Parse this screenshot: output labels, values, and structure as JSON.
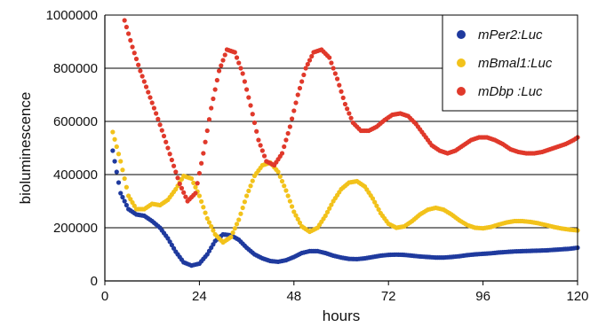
{
  "chart_data": {
    "type": "scatter",
    "xlabel": "hours",
    "ylabel": "bioluminescence",
    "xlim": [
      0,
      120
    ],
    "ylim": [
      0,
      1000000
    ],
    "x_ticks": [
      0,
      24,
      48,
      72,
      96,
      120
    ],
    "y_ticks": [
      0,
      200000,
      400000,
      600000,
      800000,
      1000000
    ],
    "x_tick_labels": [
      "0",
      "24",
      "48",
      "72",
      "96",
      "120"
    ],
    "y_tick_labels": [
      "0",
      "200000",
      "400000",
      "600000",
      "800000",
      "1000000"
    ],
    "grid": "horizontal",
    "legend_position": "top-right",
    "series": [
      {
        "name": "mPer2:Luc",
        "color": "#1f3a9e",
        "points": [
          [
            2,
            490000
          ],
          [
            4,
            330000
          ],
          [
            6,
            270000
          ],
          [
            8,
            250000
          ],
          [
            10,
            245000
          ],
          [
            12,
            225000
          ],
          [
            14,
            200000
          ],
          [
            16,
            160000
          ],
          [
            18,
            110000
          ],
          [
            20,
            70000
          ],
          [
            22,
            58000
          ],
          [
            24,
            65000
          ],
          [
            26,
            100000
          ],
          [
            28,
            150000
          ],
          [
            30,
            175000
          ],
          [
            32,
            172000
          ],
          [
            34,
            155000
          ],
          [
            36,
            125000
          ],
          [
            38,
            100000
          ],
          [
            40,
            85000
          ],
          [
            42,
            75000
          ],
          [
            44,
            72000
          ],
          [
            46,
            78000
          ],
          [
            48,
            90000
          ],
          [
            50,
            105000
          ],
          [
            52,
            112000
          ],
          [
            54,
            112000
          ],
          [
            56,
            105000
          ],
          [
            58,
            95000
          ],
          [
            60,
            88000
          ],
          [
            62,
            83000
          ],
          [
            64,
            82000
          ],
          [
            66,
            85000
          ],
          [
            68,
            90000
          ],
          [
            70,
            95000
          ],
          [
            72,
            98000
          ],
          [
            74,
            99000
          ],
          [
            76,
            98000
          ],
          [
            78,
            95000
          ],
          [
            80,
            92000
          ],
          [
            82,
            90000
          ],
          [
            84,
            88000
          ],
          [
            86,
            88000
          ],
          [
            88,
            90000
          ],
          [
            90,
            93000
          ],
          [
            92,
            97000
          ],
          [
            94,
            100000
          ],
          [
            96,
            102000
          ],
          [
            98,
            104000
          ],
          [
            100,
            107000
          ],
          [
            102,
            109000
          ],
          [
            104,
            111000
          ],
          [
            106,
            112000
          ],
          [
            108,
            113000
          ],
          [
            110,
            114000
          ],
          [
            112,
            115000
          ],
          [
            114,
            117000
          ],
          [
            116,
            119000
          ],
          [
            118,
            121000
          ],
          [
            120,
            125000
          ]
        ]
      },
      {
        "name": "mBmal1:Luc",
        "color": "#f2c21b",
        "points": [
          [
            2,
            560000
          ],
          [
            4,
            450000
          ],
          [
            6,
            320000
          ],
          [
            8,
            270000
          ],
          [
            10,
            270000
          ],
          [
            12,
            290000
          ],
          [
            14,
            285000
          ],
          [
            16,
            305000
          ],
          [
            18,
            345000
          ],
          [
            20,
            395000
          ],
          [
            22,
            385000
          ],
          [
            24,
            320000
          ],
          [
            26,
            235000
          ],
          [
            28,
            175000
          ],
          [
            30,
            145000
          ],
          [
            32,
            165000
          ],
          [
            34,
            230000
          ],
          [
            36,
            320000
          ],
          [
            38,
            395000
          ],
          [
            40,
            435000
          ],
          [
            42,
            445000
          ],
          [
            44,
            410000
          ],
          [
            46,
            340000
          ],
          [
            48,
            260000
          ],
          [
            50,
            205000
          ],
          [
            52,
            185000
          ],
          [
            54,
            200000
          ],
          [
            56,
            245000
          ],
          [
            58,
            300000
          ],
          [
            60,
            345000
          ],
          [
            62,
            370000
          ],
          [
            64,
            375000
          ],
          [
            66,
            355000
          ],
          [
            68,
            310000
          ],
          [
            70,
            255000
          ],
          [
            72,
            215000
          ],
          [
            74,
            200000
          ],
          [
            76,
            205000
          ],
          [
            78,
            225000
          ],
          [
            80,
            250000
          ],
          [
            82,
            268000
          ],
          [
            84,
            275000
          ],
          [
            86,
            268000
          ],
          [
            88,
            250000
          ],
          [
            90,
            228000
          ],
          [
            92,
            210000
          ],
          [
            94,
            200000
          ],
          [
            96,
            198000
          ],
          [
            98,
            203000
          ],
          [
            100,
            212000
          ],
          [
            102,
            220000
          ],
          [
            104,
            225000
          ],
          [
            106,
            225000
          ],
          [
            108,
            222000
          ],
          [
            110,
            217000
          ],
          [
            112,
            210000
          ],
          [
            114,
            203000
          ],
          [
            116,
            197000
          ],
          [
            118,
            193000
          ],
          [
            120,
            190000
          ]
        ]
      },
      {
        "name": "mDbp :Luc",
        "color": "#e0392b",
        "points": [
          [
            5,
            980000
          ],
          [
            7,
            880000
          ],
          [
            9,
            790000
          ],
          [
            11,
            710000
          ],
          [
            13,
            630000
          ],
          [
            15,
            545000
          ],
          [
            17,
            455000
          ],
          [
            19,
            365000
          ],
          [
            21,
            300000
          ],
          [
            23,
            330000
          ],
          [
            25,
            480000
          ],
          [
            27,
            650000
          ],
          [
            29,
            790000
          ],
          [
            31,
            870000
          ],
          [
            33,
            860000
          ],
          [
            35,
            780000
          ],
          [
            37,
            660000
          ],
          [
            39,
            530000
          ],
          [
            41,
            450000
          ],
          [
            43,
            435000
          ],
          [
            45,
            480000
          ],
          [
            47,
            580000
          ],
          [
            49,
            700000
          ],
          [
            51,
            800000
          ],
          [
            53,
            860000
          ],
          [
            55,
            870000
          ],
          [
            57,
            840000
          ],
          [
            59,
            760000
          ],
          [
            61,
            665000
          ],
          [
            63,
            595000
          ],
          [
            65,
            565000
          ],
          [
            67,
            565000
          ],
          [
            69,
            580000
          ],
          [
            71,
            605000
          ],
          [
            73,
            625000
          ],
          [
            75,
            630000
          ],
          [
            77,
            620000
          ],
          [
            79,
            590000
          ],
          [
            81,
            550000
          ],
          [
            83,
            510000
          ],
          [
            85,
            490000
          ],
          [
            87,
            480000
          ],
          [
            89,
            490000
          ],
          [
            91,
            510000
          ],
          [
            93,
            530000
          ],
          [
            95,
            540000
          ],
          [
            97,
            540000
          ],
          [
            99,
            530000
          ],
          [
            101,
            515000
          ],
          [
            103,
            495000
          ],
          [
            105,
            485000
          ],
          [
            107,
            480000
          ],
          [
            109,
            480000
          ],
          [
            111,
            485000
          ],
          [
            113,
            495000
          ],
          [
            115,
            505000
          ],
          [
            117,
            515000
          ],
          [
            119,
            530000
          ],
          [
            120,
            540000
          ]
        ]
      }
    ]
  }
}
